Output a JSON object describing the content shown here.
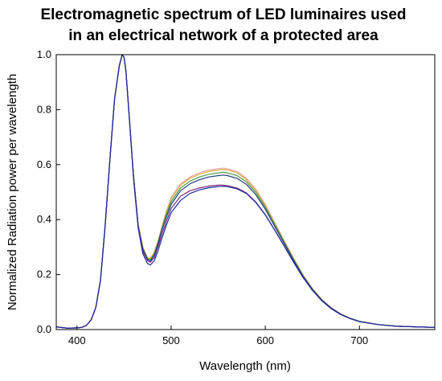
{
  "chart_data": {
    "type": "line",
    "title_lines": [
      "Electromagnetic spectrum of LED luminaires used",
      "in an electrical network of a protected area"
    ],
    "xlabel": "Wavelength (nm)",
    "ylabel": "Normalized Radiation power per wavelength",
    "xlim": [
      378,
      780
    ],
    "ylim": [
      0.0,
      1.0
    ],
    "x_ticks": [
      400,
      500,
      600,
      700
    ],
    "y_ticks": [
      0.0,
      0.2,
      0.4,
      0.6,
      0.8,
      1.0
    ],
    "x_tick_labels": [
      "400",
      "500",
      "600",
      "700"
    ],
    "y_tick_labels": [
      "0.0",
      "0.2",
      "0.4",
      "0.6",
      "0.8",
      "1.0"
    ],
    "grid": false,
    "legend": "none",
    "x": [
      378,
      390,
      400,
      405,
      410,
      415,
      420,
      425,
      430,
      435,
      440,
      445,
      448,
      450,
      452,
      455,
      460,
      465,
      470,
      475,
      478,
      482,
      486,
      490,
      495,
      500,
      510,
      520,
      530,
      540,
      550,
      555,
      560,
      570,
      580,
      590,
      600,
      610,
      620,
      630,
      640,
      650,
      660,
      670,
      680,
      690,
      700,
      720,
      740,
      760,
      780
    ],
    "series": [
      {
        "color": "#e8a0a0",
        "values": [
          0.01,
          0.005,
          0.006,
          0.008,
          0.015,
          0.035,
          0.08,
          0.18,
          0.38,
          0.62,
          0.84,
          0.96,
          1.0,
          0.99,
          0.94,
          0.8,
          0.56,
          0.38,
          0.3,
          0.26,
          0.26,
          0.28,
          0.32,
          0.37,
          0.43,
          0.48,
          0.53,
          0.555,
          0.57,
          0.58,
          0.585,
          0.587,
          0.585,
          0.575,
          0.55,
          0.51,
          0.455,
          0.39,
          0.325,
          0.26,
          0.2,
          0.15,
          0.11,
          0.08,
          0.058,
          0.042,
          0.03,
          0.018,
          0.012,
          0.01,
          0.008
        ]
      },
      {
        "color": "#d9b040",
        "values": [
          0.01,
          0.005,
          0.006,
          0.008,
          0.015,
          0.035,
          0.08,
          0.18,
          0.38,
          0.62,
          0.84,
          0.96,
          1.0,
          0.99,
          0.94,
          0.8,
          0.56,
          0.38,
          0.3,
          0.26,
          0.26,
          0.28,
          0.32,
          0.37,
          0.43,
          0.475,
          0.525,
          0.55,
          0.565,
          0.575,
          0.58,
          0.582,
          0.58,
          0.57,
          0.545,
          0.505,
          0.45,
          0.386,
          0.322,
          0.258,
          0.198,
          0.149,
          0.109,
          0.079,
          0.057,
          0.041,
          0.03,
          0.018,
          0.012,
          0.01,
          0.008
        ]
      },
      {
        "color": "#4a9a4a",
        "values": [
          0.01,
          0.005,
          0.006,
          0.008,
          0.015,
          0.035,
          0.08,
          0.18,
          0.38,
          0.62,
          0.84,
          0.96,
          1.0,
          0.99,
          0.94,
          0.8,
          0.56,
          0.38,
          0.295,
          0.258,
          0.255,
          0.275,
          0.315,
          0.365,
          0.42,
          0.465,
          0.515,
          0.54,
          0.555,
          0.565,
          0.57,
          0.572,
          0.57,
          0.56,
          0.537,
          0.498,
          0.445,
          0.382,
          0.318,
          0.255,
          0.196,
          0.147,
          0.108,
          0.078,
          0.056,
          0.041,
          0.03,
          0.018,
          0.012,
          0.01,
          0.008
        ]
      },
      {
        "color": "#1f3f7a",
        "values": [
          0.01,
          0.005,
          0.006,
          0.008,
          0.015,
          0.035,
          0.08,
          0.18,
          0.38,
          0.62,
          0.84,
          0.96,
          1.0,
          0.99,
          0.94,
          0.8,
          0.56,
          0.38,
          0.29,
          0.255,
          0.25,
          0.27,
          0.31,
          0.36,
          0.41,
          0.455,
          0.505,
          0.53,
          0.545,
          0.555,
          0.56,
          0.562,
          0.56,
          0.55,
          0.528,
          0.49,
          0.438,
          0.376,
          0.314,
          0.252,
          0.194,
          0.146,
          0.107,
          0.078,
          0.056,
          0.04,
          0.029,
          0.018,
          0.012,
          0.01,
          0.008
        ]
      },
      {
        "color": "#7a2a7a",
        "values": [
          0.01,
          0.005,
          0.006,
          0.008,
          0.015,
          0.035,
          0.08,
          0.18,
          0.38,
          0.62,
          0.84,
          0.96,
          1.0,
          0.99,
          0.94,
          0.8,
          0.56,
          0.38,
          0.285,
          0.25,
          0.245,
          0.262,
          0.3,
          0.345,
          0.395,
          0.44,
          0.485,
          0.505,
          0.515,
          0.522,
          0.525,
          0.525,
          0.523,
          0.515,
          0.497,
          0.464,
          0.418,
          0.363,
          0.305,
          0.246,
          0.19,
          0.143,
          0.105,
          0.076,
          0.055,
          0.04,
          0.029,
          0.018,
          0.012,
          0.01,
          0.008
        ]
      },
      {
        "color": "#1a2aa0",
        "values": [
          0.01,
          0.005,
          0.006,
          0.008,
          0.015,
          0.035,
          0.08,
          0.18,
          0.38,
          0.62,
          0.84,
          0.96,
          1.0,
          0.99,
          0.94,
          0.8,
          0.55,
          0.37,
          0.275,
          0.24,
          0.235,
          0.25,
          0.285,
          0.33,
          0.38,
          0.425,
          0.47,
          0.495,
          0.508,
          0.516,
          0.52,
          0.521,
          0.52,
          0.512,
          0.495,
          0.462,
          0.417,
          0.362,
          0.304,
          0.245,
          0.19,
          0.143,
          0.105,
          0.076,
          0.055,
          0.04,
          0.029,
          0.018,
          0.012,
          0.01,
          0.008
        ]
      }
    ]
  }
}
